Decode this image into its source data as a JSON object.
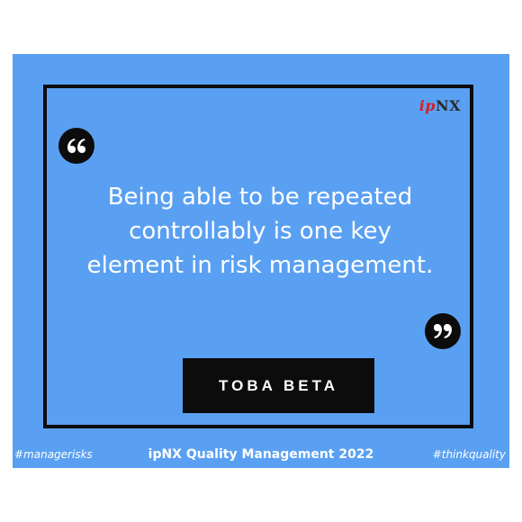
{
  "logo": {
    "ip": "ip",
    "nx": "NX"
  },
  "icons": {
    "open_quote": "open-quote-icon",
    "close_quote": "close-quote-icon"
  },
  "quote": {
    "line1": "Being able to be repeated",
    "line2": "controllably is one key",
    "line3": "element in risk management."
  },
  "author": "TOBA BETA",
  "footer": {
    "left": "#managerisks",
    "center": "ipNX Quality Management 2022",
    "right": "#thinkquality"
  },
  "colors": {
    "background": "#5aa0f2",
    "frame": "#0c0c0c",
    "text": "#ffffff",
    "logo_red": "#d61f26"
  }
}
